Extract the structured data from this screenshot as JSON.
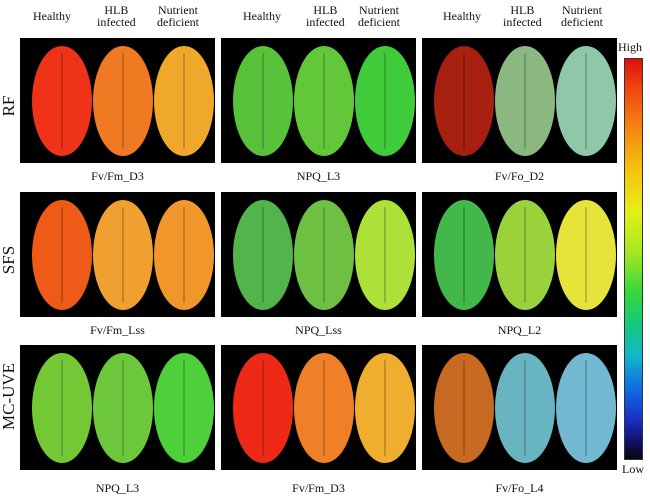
{
  "column_headers": [
    {
      "healthy": "Healthy",
      "hlb": [
        "HLB",
        "infected"
      ],
      "nutrient": [
        "Nutrient",
        "deficient"
      ]
    },
    {
      "healthy": "Healthy",
      "hlb": [
        "HLB",
        "infected"
      ],
      "nutrient": [
        "Nutrient",
        "deficient"
      ]
    },
    {
      "healthy": "Healthy",
      "hlb": [
        "HLB",
        "infected"
      ],
      "nutrient": [
        "Nutrient",
        "deficient"
      ]
    }
  ],
  "rows": [
    "RF",
    "SFS",
    "MC-UVE"
  ],
  "panels": [
    {
      "label": "Fv/Fm_D3",
      "leaf_colors": [
        "#ee3318",
        "#f07a22",
        "#f0a82a"
      ]
    },
    {
      "label": "NPQ_L3",
      "leaf_colors": [
        "#58c23a",
        "#62c83a",
        "#40cc3a"
      ]
    },
    {
      "label": "Fv/Fo_D2",
      "leaf_colors": [
        "#a82010",
        "#8ab880",
        "#8ec8a8"
      ]
    },
    {
      "label": "Fv/Fm_Lss",
      "leaf_colors": [
        "#ee5a18",
        "#f0a030",
        "#f0962a"
      ]
    },
    {
      "label": "NPQ_Lss",
      "leaf_colors": [
        "#52b44a",
        "#6ec043",
        "#aee03a"
      ]
    },
    {
      "label": "NPQ_L2",
      "leaf_colors": [
        "#42b84a",
        "#9ad23c",
        "#e6e43a"
      ]
    },
    {
      "label": "NPQ_L3",
      "leaf_colors": [
        "#74c836",
        "#6cc83a",
        "#4ed03a"
      ]
    },
    {
      "label": "Fv/Fm_D3",
      "leaf_colors": [
        "#ee2a16",
        "#f08028",
        "#f0ae2e"
      ]
    },
    {
      "label": "Fv/Fo_L4",
      "leaf_colors": [
        "#c86a22",
        "#68b4c0",
        "#72b8d0"
      ]
    }
  ],
  "colorbar": {
    "high": "High",
    "low": "Low"
  }
}
